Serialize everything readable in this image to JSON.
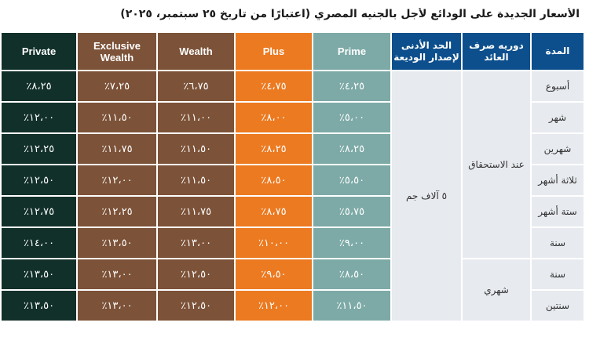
{
  "title": "الأسعار الجديدة على الودائع لأجل بالجنيه المصري (اعتبارًا من تاريخ ٢٥ سبتمبر، ٢٠٢٥)",
  "headers": {
    "private": "Private",
    "exclusive_wealth": "Exclusive Wealth",
    "wealth": "Wealth",
    "plus": "Plus",
    "prime": "Prime",
    "min_deposit": "الحد الأدنى لإصدار الوديعة",
    "payout_frequency": "دوريه صرف العائد",
    "duration": "المدة"
  },
  "min_deposit_value": "٥ آلاف جم",
  "payout_groups": [
    "عند الاستحقاق",
    "شهري"
  ],
  "rows": [
    {
      "duration": "أسبوع",
      "prime": "٤،٢٥٪",
      "plus": "٤،٧٥٪",
      "wealth": "٦،٧٥٪",
      "exclusive_wealth": "٧،٢٥٪",
      "private": "٨،٢٥٪"
    },
    {
      "duration": "شهر",
      "prime": "٥،٠٠٪",
      "plus": "٨،٠٠٪",
      "wealth": "١١،٠٠٪",
      "exclusive_wealth": "١١،٥٠٪",
      "private": "١٢،٠٠٪"
    },
    {
      "duration": "شهرين",
      "prime": "٨،٢٥٪",
      "plus": "٨،٢٥٪",
      "wealth": "١١،٥٠٪",
      "exclusive_wealth": "١١،٧٥٪",
      "private": "١٢،٢٥٪"
    },
    {
      "duration": "ثلاثة أشهر",
      "prime": "٥،٥٠٪",
      "plus": "٨،٥٠٪",
      "wealth": "١١،٥٠٪",
      "exclusive_wealth": "١٢،٠٠٪",
      "private": "١٢،٥٠٪"
    },
    {
      "duration": "ستة أشهر",
      "prime": "٥،٧٥٪",
      "plus": "٨،٧٥٪",
      "wealth": "١١،٧٥٪",
      "exclusive_wealth": "١٢،٢٥٪",
      "private": "١٢،٧٥٪"
    },
    {
      "duration": "سنة",
      "prime": "٩،٠٠٪",
      "plus": "١٠،٠٠٪",
      "wealth": "١٣،٠٠٪",
      "exclusive_wealth": "١٣،٥٠٪",
      "private": "١٤،٠٠٪"
    },
    {
      "duration": "سنة",
      "prime": "٨،٥٠٪",
      "plus": "٩،٥٠٪",
      "wealth": "١٢،٥٠٪",
      "exclusive_wealth": "١٣،٠٠٪",
      "private": "١٣،٥٠٪"
    },
    {
      "duration": "سنتين",
      "prime": "١١،٥٠٪",
      "plus": "١٢،٠٠٪",
      "wealth": "١٢،٥٠٪",
      "exclusive_wealth": "١٣،٠٠٪",
      "private": "١٣،٥٠٪"
    }
  ],
  "colors": {
    "private": "#12302a",
    "wealth": "#7c5238",
    "plus": "#ec7a21",
    "prime": "#7daaa7",
    "header_blue": "#0d4f8c",
    "info_cell": "#e7eaef"
  }
}
